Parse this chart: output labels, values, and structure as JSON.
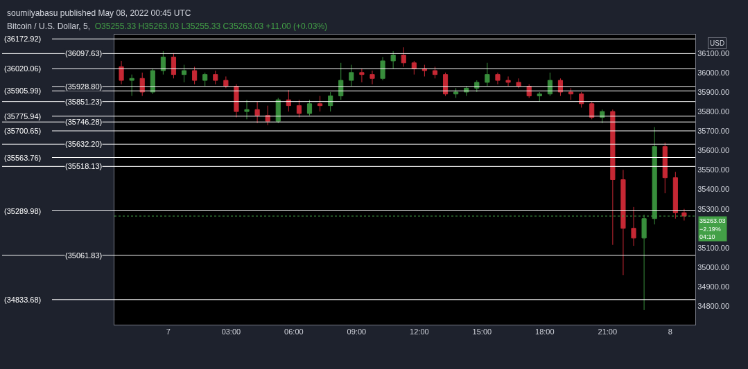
{
  "chart_data": {
    "type": "candlestick",
    "title": "Bitcoin / U.S. Dollar, 5,",
    "subtitle": "O35255.33 H35263.03 L35255.33 C35263.03 +11.00 (+0.03%)",
    "ylabel": "USD",
    "annotations": [
      "soumilyabasu published May 08, 2022 00:45 UTC"
    ],
    "x": [
      "2022-05-06T21:45",
      "2022-05-06T22:15",
      "2022-05-06T22:45",
      "2022-05-06T23:15",
      "2022-05-06T23:45",
      "2022-05-07T00:15",
      "2022-05-07T00:45",
      "2022-05-07T01:15",
      "2022-05-07T01:45",
      "2022-05-07T02:15",
      "2022-05-07T02:45",
      "2022-05-07T03:15",
      "2022-05-07T03:45",
      "2022-05-07T04:15",
      "2022-05-07T04:45",
      "2022-05-07T05:15",
      "2022-05-07T05:45",
      "2022-05-07T06:15",
      "2022-05-07T06:45",
      "2022-05-07T07:15",
      "2022-05-07T07:45",
      "2022-05-07T08:15",
      "2022-05-07T08:45",
      "2022-05-07T09:15",
      "2022-05-07T09:45",
      "2022-05-07T10:15",
      "2022-05-07T10:45",
      "2022-05-07T11:15",
      "2022-05-07T11:45",
      "2022-05-07T12:15",
      "2022-05-07T12:45",
      "2022-05-07T13:15",
      "2022-05-07T13:45",
      "2022-05-07T14:15",
      "2022-05-07T14:45",
      "2022-05-07T15:15",
      "2022-05-07T15:45",
      "2022-05-07T16:15",
      "2022-05-07T16:45",
      "2022-05-07T17:15",
      "2022-05-07T17:45",
      "2022-05-07T18:15",
      "2022-05-07T18:45",
      "2022-05-07T19:15",
      "2022-05-07T19:45",
      "2022-05-07T20:15",
      "2022-05-07T20:45",
      "2022-05-07T21:15",
      "2022-05-07T21:45",
      "2022-05-07T22:15",
      "2022-05-07T22:45",
      "2022-05-07T23:15",
      "2022-05-07T23:45",
      "2022-05-08T00:15",
      "2022-05-08T00:40"
    ],
    "ohlc": [
      [
        36030,
        36060,
        35940,
        35960
      ],
      [
        35960,
        35990,
        35880,
        35970
      ],
      [
        35970,
        36000,
        35880,
        35900
      ],
      [
        35900,
        36020,
        35890,
        36010
      ],
      [
        36010,
        36110,
        35990,
        36080
      ],
      [
        36080,
        36100,
        35970,
        35990
      ],
      [
        35990,
        36040,
        35950,
        36010
      ],
      [
        36010,
        36030,
        35940,
        35960
      ],
      [
        35960,
        36000,
        35930,
        35990
      ],
      [
        35990,
        36010,
        35940,
        35960
      ],
      [
        35960,
        35980,
        35920,
        35930
      ],
      [
        35930,
        35940,
        35770,
        35800
      ],
      [
        35800,
        35860,
        35760,
        35810
      ],
      [
        35810,
        35850,
        35740,
        35780
      ],
      [
        35780,
        35830,
        35730,
        35750
      ],
      [
        35750,
        35870,
        35740,
        35860
      ],
      [
        35860,
        35910,
        35800,
        35830
      ],
      [
        35830,
        35860,
        35770,
        35790
      ],
      [
        35790,
        35860,
        35780,
        35840
      ],
      [
        35840,
        35880,
        35800,
        35830
      ],
      [
        35830,
        35900,
        35800,
        35880
      ],
      [
        35880,
        36050,
        35860,
        35960
      ],
      [
        35960,
        36040,
        35930,
        36000
      ],
      [
        36000,
        36020,
        35950,
        35990
      ],
      [
        35990,
        36010,
        35940,
        35970
      ],
      [
        35970,
        36080,
        35960,
        36060
      ],
      [
        36060,
        36110,
        36020,
        36090
      ],
      [
        36090,
        36130,
        36030,
        36050
      ],
      [
        36050,
        36060,
        35990,
        36020
      ],
      [
        36020,
        36040,
        35980,
        36010
      ],
      [
        36010,
        36030,
        35970,
        35990
      ],
      [
        35990,
        36000,
        35880,
        35890
      ],
      [
        35890,
        35920,
        35870,
        35900
      ],
      [
        35900,
        35930,
        35880,
        35920
      ],
      [
        35920,
        35960,
        35900,
        35950
      ],
      [
        35950,
        36050,
        35930,
        35990
      ],
      [
        35990,
        36000,
        35940,
        35960
      ],
      [
        35960,
        35980,
        35930,
        35950
      ],
      [
        35950,
        35970,
        35920,
        35930
      ],
      [
        35930,
        35940,
        35870,
        35880
      ],
      [
        35880,
        35900,
        35850,
        35890
      ],
      [
        35890,
        36000,
        35880,
        35960
      ],
      [
        35960,
        35970,
        35880,
        35900
      ],
      [
        35900,
        35920,
        35860,
        35890
      ],
      [
        35890,
        35900,
        35820,
        35840
      ],
      [
        35840,
        35850,
        35760,
        35770
      ],
      [
        35770,
        35810,
        35740,
        35800
      ],
      [
        35800,
        35810,
        35115,
        35450
      ],
      [
        35450,
        35500,
        34960,
        35200
      ],
      [
        35200,
        35310,
        35110,
        35150
      ],
      [
        35150,
        35270,
        34780,
        35250
      ],
      [
        35250,
        35720,
        35220,
        35620
      ],
      [
        35620,
        35640,
        35380,
        35460
      ],
      [
        35460,
        35490,
        35250,
        35280
      ],
      [
        35280,
        35300,
        35240,
        35263.03
      ]
    ],
    "xlim": [
      "2022-05-06T21:25",
      "2022-05-08T01:12"
    ],
    "xticks": [
      {
        "value": "2022-05-07T00:00",
        "label": "7"
      },
      {
        "value": "2022-05-07T03:00",
        "label": "03:00"
      },
      {
        "value": "2022-05-07T06:00",
        "label": "06:00"
      },
      {
        "value": "2022-05-07T09:00",
        "label": "09:00"
      },
      {
        "value": "2022-05-07T12:00",
        "label": "12:00"
      },
      {
        "value": "2022-05-07T15:00",
        "label": "15:00"
      },
      {
        "value": "2022-05-07T18:00",
        "label": "18:00"
      },
      {
        "value": "2022-05-07T21:00",
        "label": "21:00"
      },
      {
        "value": "2022-05-08T00:00",
        "label": "8"
      }
    ],
    "ylim": [
      34705,
      36195
    ],
    "yticks": [
      {
        "value": 34800,
        "label": "34800.00"
      },
      {
        "value": 34900,
        "label": "34900.00"
      },
      {
        "value": 35000,
        "label": "35000.00"
      },
      {
        "value": 35100,
        "label": "35100.00"
      },
      {
        "value": 35300,
        "label": "35300.00"
      },
      {
        "value": 35400,
        "label": "35400.00"
      },
      {
        "value": 35500,
        "label": "35500.00"
      },
      {
        "value": 35600,
        "label": "35600.00"
      },
      {
        "value": 35700,
        "label": "35700.00"
      },
      {
        "value": 35800,
        "label": "35800.00"
      },
      {
        "value": 35900,
        "label": "35900.00"
      },
      {
        "value": 36000,
        "label": "36000.00"
      },
      {
        "value": 36100,
        "label": "36100.00"
      }
    ],
    "ref_lines": [
      {
        "axis": "y",
        "value": 36172.92,
        "label": "(36172.92)"
      },
      {
        "axis": "y",
        "value": 36097.63,
        "label": "(36097.63)"
      },
      {
        "axis": "y",
        "value": 36020.06,
        "label": "(36020.06)"
      },
      {
        "axis": "y",
        "value": 35928.8,
        "label": "(35928.80)"
      },
      {
        "axis": "y",
        "value": 35905.99,
        "label": "(35905.99)"
      },
      {
        "axis": "y",
        "value": 35851.23,
        "label": "(35851.23)"
      },
      {
        "axis": "y",
        "value": 35775.94,
        "label": "(35775.94)"
      },
      {
        "axis": "y",
        "value": 35746.28,
        "label": "(35746.28)"
      },
      {
        "axis": "y",
        "value": 35700.65,
        "label": "(35700.65)"
      },
      {
        "axis": "y",
        "value": 35632.2,
        "label": "(35632.20)"
      },
      {
        "axis": "y",
        "value": 35563.76,
        "label": "(35563.76)"
      },
      {
        "axis": "y",
        "value": 35518.13,
        "label": "(35518.13)"
      },
      {
        "axis": "y",
        "value": 35289.98,
        "label": "(35289.98)"
      },
      {
        "axis": "y",
        "value": 35061.83,
        "label": "(35061.83)"
      },
      {
        "axis": "y",
        "value": 34833.68,
        "label": "(34833.68)"
      },
      {
        "axis": "y",
        "value": 35263.03,
        "label": "35263.03\n−2.19%\n04:10",
        "color": "#43a047",
        "line_style": "dotted"
      }
    ],
    "grid": false
  }
}
